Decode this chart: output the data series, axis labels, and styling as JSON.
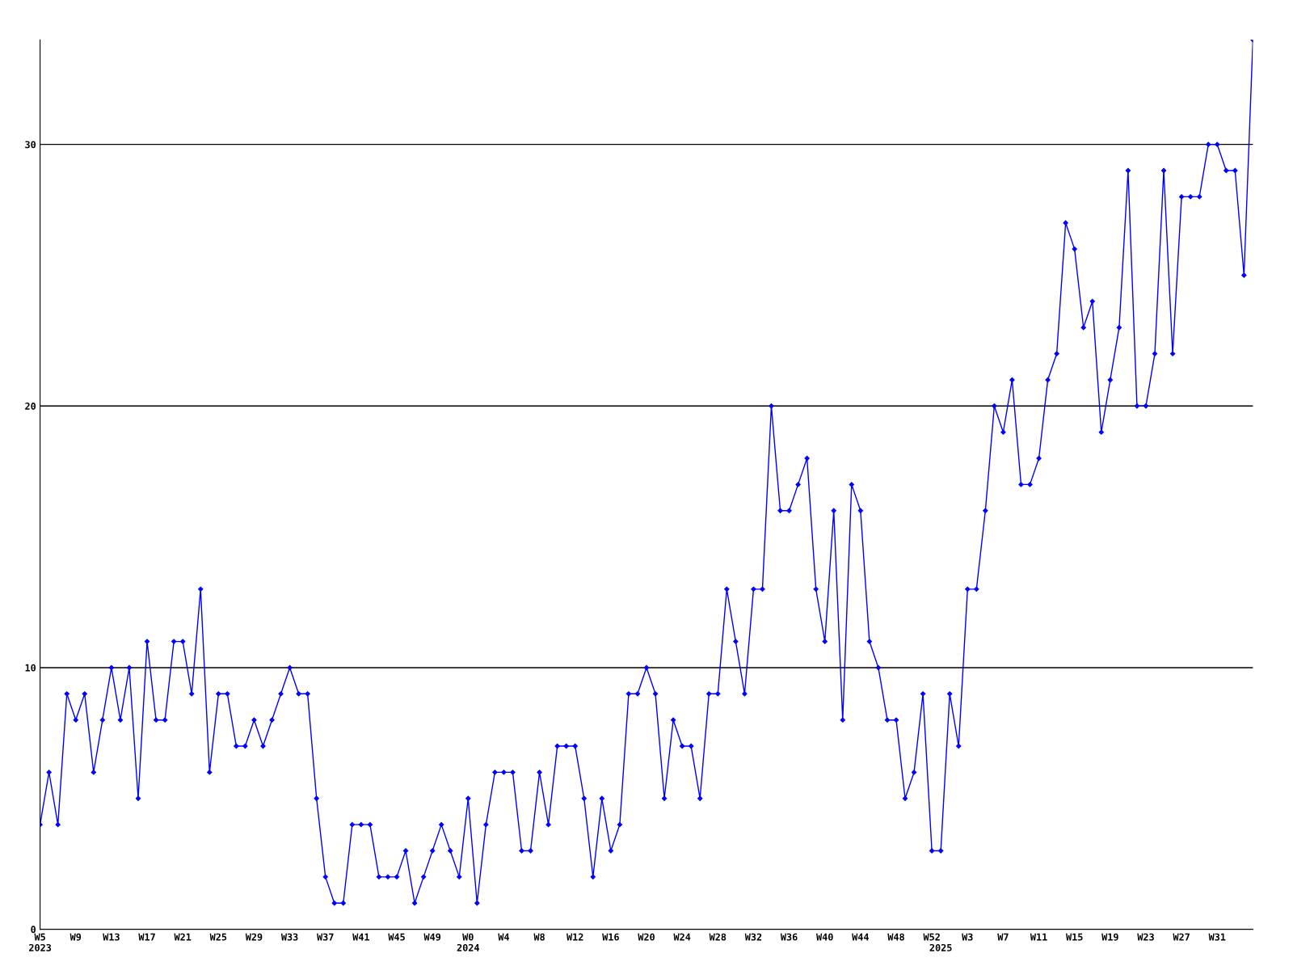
{
  "chart_data": {
    "type": "line",
    "categories": [
      "W5\n2023",
      null,
      null,
      null,
      "W9",
      null,
      null,
      null,
      "W13",
      null,
      null,
      null,
      "W17",
      null,
      null,
      null,
      "W21",
      null,
      null,
      null,
      "W25",
      null,
      null,
      null,
      "W29",
      null,
      null,
      null,
      "W33",
      null,
      null,
      null,
      "W37",
      null,
      null,
      null,
      "W41",
      null,
      null,
      null,
      "W45",
      null,
      null,
      null,
      "W49",
      null,
      null,
      null,
      "W0\n2024",
      null,
      null,
      null,
      "W4",
      null,
      null,
      null,
      "W8",
      null,
      null,
      null,
      "W12",
      null,
      null,
      null,
      "W16",
      null,
      null,
      null,
      "W20",
      null,
      null,
      null,
      "W24",
      null,
      null,
      null,
      "W28",
      null,
      null,
      null,
      "W32",
      null,
      null,
      null,
      "W36",
      null,
      null,
      null,
      "W40",
      null,
      null,
      null,
      "W44",
      null,
      null,
      null,
      "W48",
      null,
      null,
      null,
      "W52",
      "\n2025",
      null,
      null,
      "W3",
      null,
      null,
      null,
      "W7",
      null,
      null,
      null,
      "W11",
      null,
      null,
      null,
      "W15",
      null,
      null,
      null,
      "W19",
      null,
      null,
      null,
      "W23",
      null,
      null,
      null,
      "W27",
      null,
      null,
      null,
      "W31",
      null,
      null,
      null,
      null
    ],
    "series": [
      {
        "color": "#0000ff",
        "values": [
          4,
          6,
          4,
          9,
          8,
          9,
          6,
          8,
          10,
          8,
          10,
          5,
          11,
          8,
          8,
          11,
          11,
          9,
          13,
          6,
          9,
          9,
          7,
          7,
          8,
          7,
          8,
          9,
          10,
          9,
          9,
          5,
          2,
          1,
          1,
          4,
          4,
          4,
          2,
          2,
          2,
          3,
          1,
          2,
          3,
          4,
          3,
          2,
          5,
          1,
          4,
          6,
          6,
          6,
          3,
          3,
          6,
          4,
          7,
          7,
          7,
          5,
          2,
          5,
          3,
          4,
          9,
          9,
          10,
          9,
          5,
          8,
          7,
          7,
          5,
          9,
          9,
          13,
          11,
          9,
          13,
          13,
          20,
          16,
          16,
          17,
          18,
          13,
          11,
          16,
          8,
          17,
          16,
          11,
          10,
          8,
          8,
          5,
          6,
          9,
          3,
          3,
          9,
          7,
          13,
          13,
          16,
          20,
          19,
          21,
          17,
          17,
          18,
          21,
          22,
          27,
          26,
          23,
          24,
          19,
          21,
          23,
          29,
          20,
          20,
          22,
          29,
          22,
          28,
          28,
          28,
          30,
          30,
          29,
          29,
          25,
          34
        ]
      }
    ],
    "ylim": [
      0,
      34
    ],
    "yticks": [
      0,
      10,
      20,
      30
    ],
    "grid": "y",
    "marker": "diamond",
    "line_style": "solid"
  }
}
